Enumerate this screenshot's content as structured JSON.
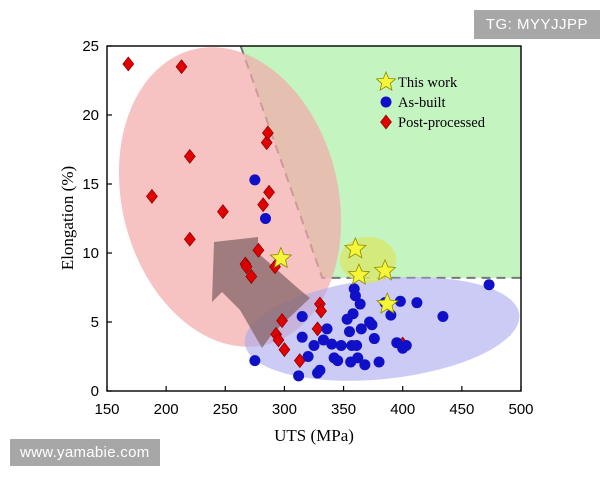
{
  "watermarks": {
    "top_right": "TG: MYYJJPP",
    "bottom_left": "www.yamabie.com"
  },
  "chart_data": {
    "type": "scatter",
    "title": "",
    "xlabel": "UTS (MPa)",
    "ylabel": "Elongation (%)",
    "xlim": [
      150,
      500
    ],
    "ylim": [
      0,
      25
    ],
    "xticks": [
      150,
      200,
      250,
      300,
      350,
      400,
      450,
      500
    ],
    "yticks": [
      0,
      5,
      10,
      15,
      20,
      25
    ],
    "grid": false,
    "legend_position": "top-right",
    "colors": {
      "this_work": "#f5f53a",
      "as_built": "#1010c8",
      "post_processed": "#e00000",
      "red_region": "#f4a8a8",
      "blue_region": "#a8a8ee",
      "green_region": "#c4f4c0",
      "yellow_region": "#d8e870",
      "arrow": "#8a6a6e"
    },
    "series": [
      {
        "name": "This work",
        "marker": "star",
        "points": [
          [
            297,
            9.6
          ],
          [
            360,
            10.3
          ],
          [
            363,
            8.4
          ],
          [
            385,
            8.7
          ],
          [
            387,
            6.3
          ]
        ]
      },
      {
        "name": "As-built",
        "marker": "circle",
        "points": [
          [
            275,
            15.3
          ],
          [
            284,
            12.5
          ],
          [
            312,
            1.1
          ],
          [
            315,
            5.4
          ],
          [
            315,
            3.9
          ],
          [
            320,
            2.5
          ],
          [
            325,
            3.3
          ],
          [
            328,
            1.3
          ],
          [
            330,
            1.5
          ],
          [
            333,
            3.7
          ],
          [
            336,
            4.5
          ],
          [
            340,
            3.4
          ],
          [
            342,
            2.4
          ],
          [
            345,
            2.2
          ],
          [
            348,
            3.3
          ],
          [
            353,
            5.2
          ],
          [
            355,
            4.3
          ],
          [
            356,
            2.1
          ],
          [
            357,
            3.3
          ],
          [
            358,
            5.6
          ],
          [
            359,
            7.4
          ],
          [
            360,
            6.9
          ],
          [
            361,
            3.3
          ],
          [
            362,
            2.4
          ],
          [
            364,
            6.3
          ],
          [
            365,
            4.5
          ],
          [
            368,
            1.9
          ],
          [
            372,
            5.0
          ],
          [
            374,
            4.8
          ],
          [
            376,
            3.8
          ],
          [
            380,
            2.1
          ],
          [
            385,
            6.4
          ],
          [
            390,
            5.5
          ],
          [
            395,
            3.5
          ],
          [
            398,
            6.5
          ],
          [
            400,
            3.1
          ],
          [
            403,
            3.3
          ],
          [
            412,
            6.4
          ],
          [
            434,
            5.4
          ],
          [
            473,
            7.7
          ],
          [
            275,
            2.2
          ]
        ]
      },
      {
        "name": "Post-processed",
        "marker": "diamond",
        "points": [
          [
            168,
            23.7
          ],
          [
            213,
            23.5
          ],
          [
            188,
            14.1
          ],
          [
            220,
            17.0
          ],
          [
            220,
            11.0
          ],
          [
            248,
            13.0
          ],
          [
            267,
            9.2
          ],
          [
            268,
            9.0
          ],
          [
            272,
            8.3
          ],
          [
            278,
            10.2
          ],
          [
            282,
            13.5
          ],
          [
            285,
            18.0
          ],
          [
            286,
            18.7
          ],
          [
            287,
            14.4
          ],
          [
            292,
            9.0
          ],
          [
            293,
            4.1
          ],
          [
            295,
            3.7
          ],
          [
            298,
            5.1
          ],
          [
            300,
            3.0
          ],
          [
            313,
            2.2
          ],
          [
            328,
            4.5
          ],
          [
            330,
            6.3
          ],
          [
            331,
            5.8
          ],
          [
            400,
            3.4
          ]
        ]
      }
    ]
  }
}
